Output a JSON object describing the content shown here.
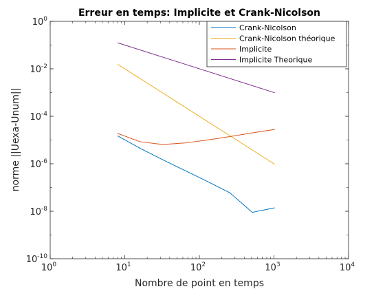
{
  "chart_data": {
    "type": "line",
    "title": "Erreur en temps: Implicite et Crank-Nicolson",
    "xlabel": "Nombre de point en temps",
    "ylabel": "norme ||Uexa-Unum||",
    "xscale": "log",
    "yscale": "log",
    "xlim": [
      1,
      10000
    ],
    "ylim": [
      1e-10,
      1
    ],
    "xticks": [
      {
        "value": 1,
        "base": "10",
        "exp": "0"
      },
      {
        "value": 10,
        "base": "10",
        "exp": "1"
      },
      {
        "value": 100,
        "base": "10",
        "exp": "2"
      },
      {
        "value": 1000,
        "base": "10",
        "exp": "3"
      },
      {
        "value": 10000,
        "base": "10",
        "exp": "4"
      }
    ],
    "yticks": [
      {
        "value": 1e-10,
        "base": "10",
        "exp": "-10"
      },
      {
        "value": 1e-08,
        "base": "10",
        "exp": "-8"
      },
      {
        "value": 1e-06,
        "base": "10",
        "exp": "-6"
      },
      {
        "value": 0.0001,
        "base": "10",
        "exp": "-4"
      },
      {
        "value": 0.01,
        "base": "10",
        "exp": "-2"
      },
      {
        "value": 1,
        "base": "10",
        "exp": "0"
      }
    ],
    "grid": false,
    "legend_position": "top-right",
    "series": [
      {
        "name": "Crank-Nicolson",
        "color": "#0072BD",
        "x": [
          8,
          16,
          32,
          64,
          128,
          256,
          512,
          1024
        ],
        "y": [
          1.5e-05,
          4.5e-06,
          1.5e-06,
          5.2e-07,
          1.8e-07,
          6e-08,
          9e-09,
          1.4e-08
        ]
      },
      {
        "name": "Crank-Nicolson théorique",
        "color": "#EDB120",
        "x": [
          8,
          1024
        ],
        "y": [
          0.0156,
          9.5e-07
        ]
      },
      {
        "name": "Implicite",
        "color": "#D95319",
        "x": [
          8,
          16,
          32,
          64,
          128,
          256,
          512,
          1024
        ],
        "y": [
          1.9e-05,
          8.5e-06,
          6.5e-06,
          7.5e-06,
          1e-05,
          1.4e-05,
          2e-05,
          2.8e-05
        ]
      },
      {
        "name": "Implicite Theorique",
        "color": "#7E2F8E",
        "x": [
          8,
          1024
        ],
        "y": [
          0.125,
          0.00098
        ]
      }
    ]
  }
}
